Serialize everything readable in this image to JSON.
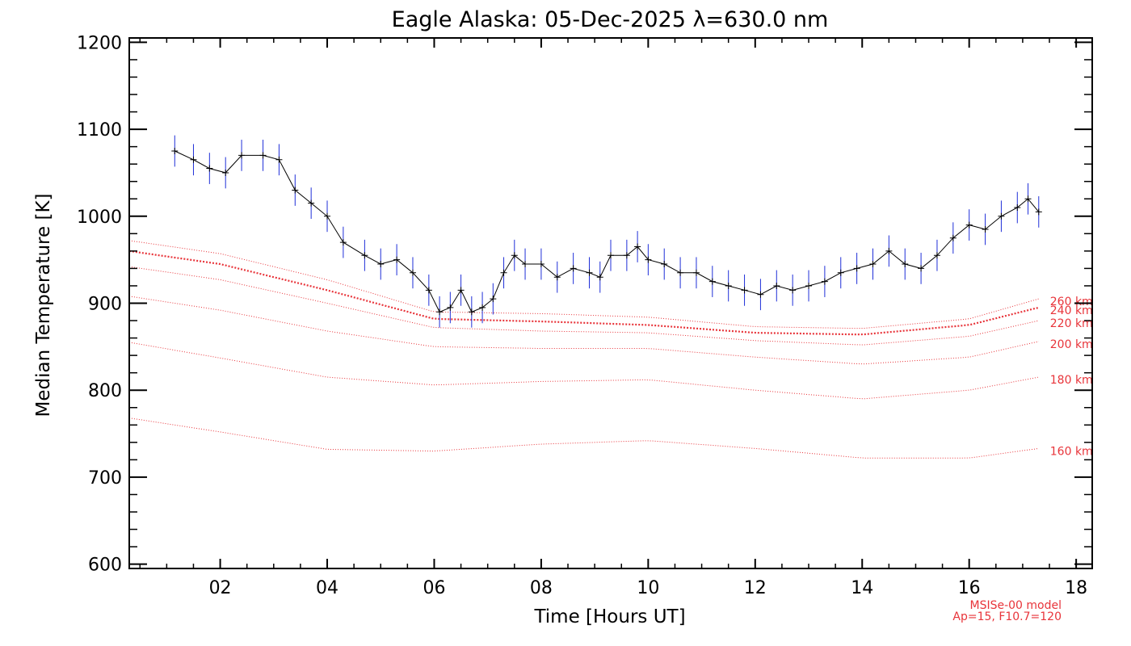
{
  "chart_data": {
    "type": "line",
    "title": "Eagle Alaska: 05-Dec-2025 λ=630.0 nm",
    "xlabel": "Time [Hours UT]",
    "ylabel": "Median Temperature [K]",
    "xlim": [
      0.3,
      18.3
    ],
    "ylim": [
      595,
      1205
    ],
    "x_ticks": [
      2,
      4,
      6,
      8,
      10,
      12,
      14,
      16,
      18
    ],
    "x_tick_labels": [
      "02",
      "04",
      "06",
      "08",
      "10",
      "12",
      "14",
      "16",
      "18"
    ],
    "y_ticks": [
      600,
      700,
      800,
      900,
      1000,
      1100,
      1200
    ],
    "y_tick_labels": [
      "600",
      "700",
      "800",
      "900",
      "1000",
      "1100",
      "1200"
    ],
    "measured": {
      "name": "Median temperature",
      "color": "#000000",
      "error_color": "#1f2fd8",
      "x": [
        1.15,
        1.5,
        1.8,
        2.1,
        2.4,
        2.8,
        3.1,
        3.4,
        3.7,
        4.0,
        4.3,
        4.7,
        5.0,
        5.3,
        5.6,
        5.9,
        6.1,
        6.3,
        6.5,
        6.7,
        6.9,
        7.1,
        7.3,
        7.5,
        7.7,
        8.0,
        8.3,
        8.6,
        8.9,
        9.1,
        9.3,
        9.6,
        9.8,
        10.0,
        10.3,
        10.6,
        10.9,
        11.2,
        11.5,
        11.8,
        12.1,
        12.4,
        12.7,
        13.0,
        13.3,
        13.6,
        13.9,
        14.2,
        14.5,
        14.8,
        15.1,
        15.4,
        15.7,
        16.0,
        16.3,
        16.6,
        16.9,
        17.1,
        17.3
      ],
      "y": [
        1075,
        1065,
        1055,
        1050,
        1070,
        1070,
        1065,
        1030,
        1015,
        1000,
        970,
        955,
        945,
        950,
        935,
        915,
        890,
        895,
        915,
        890,
        895,
        905,
        935,
        955,
        945,
        945,
        930,
        940,
        935,
        930,
        955,
        955,
        965,
        950,
        945,
        935,
        935,
        925,
        920,
        915,
        910,
        920,
        915,
        920,
        925,
        935,
        940,
        945,
        960,
        945,
        940,
        955,
        975,
        990,
        985,
        1000,
        1010,
        1020,
        1005
      ],
      "error": 18
    },
    "model_series": [
      {
        "label": "160 km",
        "x": [
          0.3,
          2,
          4,
          6,
          8,
          10,
          12,
          14,
          16,
          17.3
        ],
        "y": [
          768,
          752,
          732,
          730,
          738,
          742,
          733,
          722,
          722,
          733
        ]
      },
      {
        "label": "180 km",
        "x": [
          0.3,
          2,
          4,
          6,
          8,
          10,
          12,
          14,
          16,
          17.3
        ],
        "y": [
          855,
          837,
          815,
          806,
          810,
          812,
          800,
          790,
          800,
          815
        ]
      },
      {
        "label": "200 km",
        "x": [
          0.3,
          2,
          4,
          6,
          8,
          10,
          12,
          14,
          16,
          17.3
        ],
        "y": [
          908,
          892,
          868,
          850,
          848,
          848,
          838,
          830,
          838,
          856
        ]
      },
      {
        "label": "220 km",
        "x": [
          0.3,
          2,
          4,
          6,
          8,
          10,
          12,
          14,
          16,
          17.3
        ],
        "y": [
          942,
          927,
          900,
          872,
          868,
          866,
          857,
          852,
          862,
          880
        ]
      },
      {
        "label": "240 km",
        "x": [
          0.3,
          2,
          4,
          6,
          8,
          10,
          12,
          14,
          16,
          17.3
        ],
        "y": [
          960,
          945,
          915,
          882,
          879,
          875,
          866,
          864,
          875,
          895
        ]
      },
      {
        "label": "260 km",
        "x": [
          0.3,
          2,
          4,
          6,
          8,
          10,
          12,
          14,
          16,
          17.3
        ],
        "y": [
          972,
          957,
          927,
          890,
          888,
          884,
          873,
          871,
          882,
          905
        ]
      }
    ],
    "model_color": "#e8343a",
    "model_note": [
      "MSISe-00 model",
      "Ap=15, F10.7=120"
    ]
  }
}
